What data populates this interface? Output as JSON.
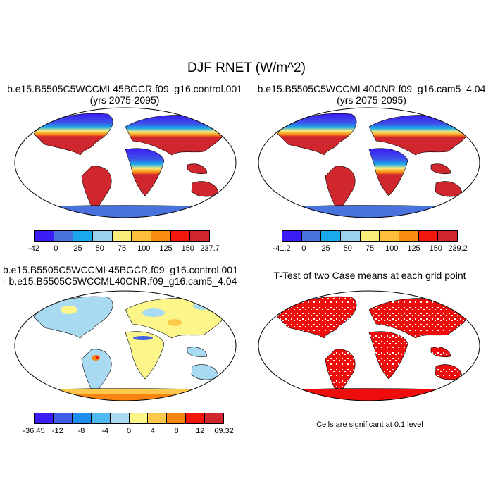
{
  "title": "DJF RNET (W/m^2)",
  "panels": [
    {
      "title_lines": [
        "b.e15.B5505C5WCCML45BGCR.f09_g16.control.001",
        "(yrs 2075-2095)"
      ],
      "colorbar": {
        "colors": [
          "#3a1cf5",
          "#4a72de",
          "#1aa9ea",
          "#9dd2ee",
          "#f8ee7a",
          "#fdbf3c",
          "#f88c12",
          "#f2160d",
          "#d0262d"
        ],
        "labels": [
          "-42",
          "0",
          "25",
          "50",
          "75",
          "100",
          "125",
          "150",
          "237.7"
        ]
      }
    },
    {
      "title_lines": [
        "b.e15.B5505C5WCCML40CNR.f09_g16.cam5_4.04",
        "(yrs 2075-2095)"
      ],
      "colorbar": {
        "colors": [
          "#3a1cf5",
          "#4a72de",
          "#1aa9ea",
          "#9dd2ee",
          "#f8ee7a",
          "#fdbf3c",
          "#f88c12",
          "#f2160d",
          "#d0262d"
        ],
        "labels": [
          "-41.2",
          "0",
          "25",
          "50",
          "75",
          "100",
          "125",
          "150",
          "239.2"
        ]
      }
    },
    {
      "title_lines": [
        "b.e15.B5505C5WCCML45BGCR.f09_g16.control.001",
        "- b.e15.B5505C5WCCML40CNR.f09_g16.cam5_4.04"
      ],
      "colorbar": {
        "colors": [
          "#3a1cf5",
          "#3f5fe6",
          "#1e8ff0",
          "#4fb9f3",
          "#a8dbf2",
          "#fbf58a",
          "#fcc94a",
          "#f88512",
          "#f2160d",
          "#d0262d"
        ],
        "labels": [
          "-36.45",
          "-12",
          "-8",
          "-4",
          "0",
          "4",
          "8",
          "12",
          "69.32"
        ]
      }
    },
    {
      "title_lines": [
        "T-Test of two Case means at each grid point"
      ],
      "note": "Cells are significant at 0.1 level"
    }
  ],
  "colors": {
    "ocean": "#ffffff",
    "outline": "#000000",
    "significant": "#ee0c0c"
  }
}
